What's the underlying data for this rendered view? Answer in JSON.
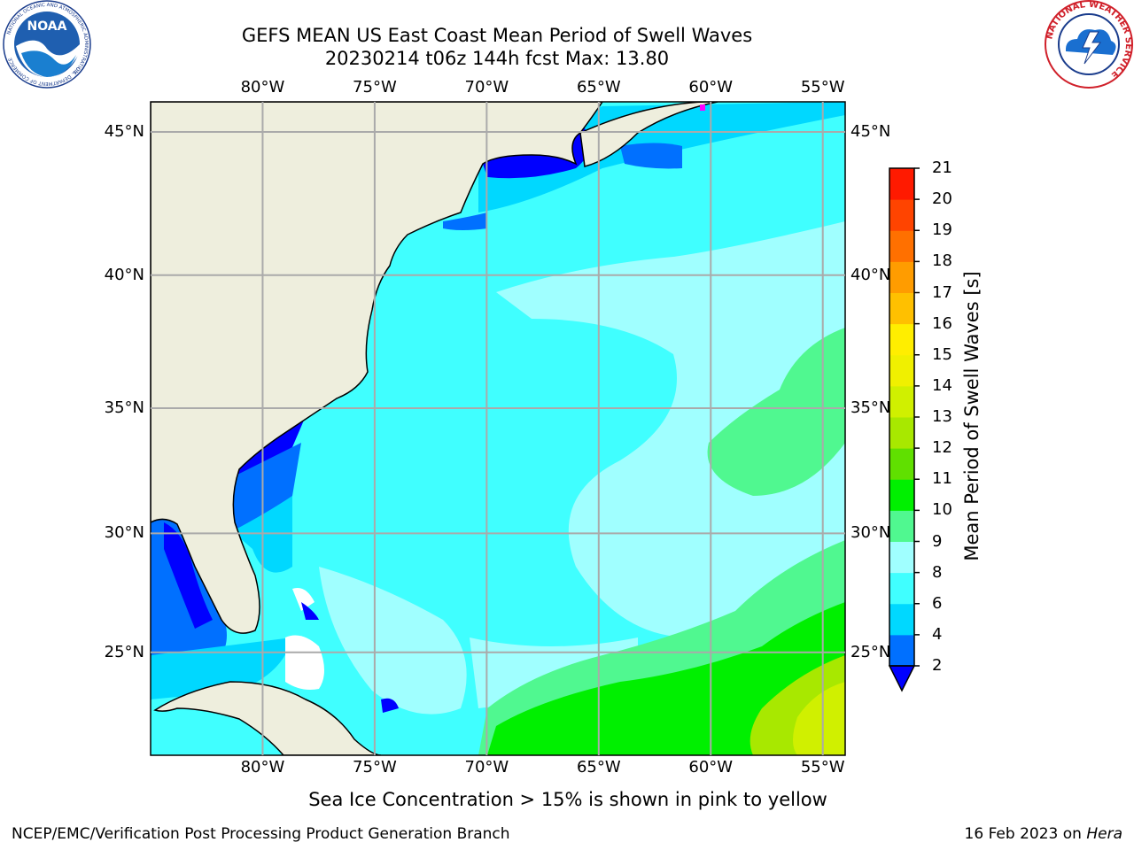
{
  "header": {
    "title_line1": "GEFS MEAN US East Coast Mean Period of Swell Waves",
    "title_line2": "20230214 t06z 144h fcst   Max: 13.80"
  },
  "logos": {
    "left": "noaa-logo",
    "left_text": "NOAA",
    "left_ring_text": "NATIONAL OCEANIC AND ATMOSPHERIC ADMINISTRATION",
    "left_ring_bottom": "U.S. DEPARTMENT OF COMMERCE",
    "right": "nws-logo",
    "right_ring_text": "NATIONAL WEATHER SERVICE"
  },
  "map": {
    "lon_range": [
      -85,
      -54
    ],
    "lat_range": [
      20.5,
      46
    ],
    "lon_ticks": [
      "80°W",
      "75°W",
      "70°W",
      "65°W",
      "60°W",
      "55°W"
    ],
    "lon_values": [
      -80,
      -75,
      -70,
      -65,
      -60,
      -55
    ],
    "lat_ticks": [
      "45°N",
      "40°N",
      "35°N",
      "30°N",
      "25°N"
    ],
    "lat_values": [
      45,
      40,
      35,
      30,
      25
    ],
    "land_color": "#eeeedd",
    "grid": true
  },
  "colorbar": {
    "title": "Mean Period of Swell Waves [s]",
    "labels": [
      "2",
      "4",
      "6",
      "8",
      "9",
      "10",
      "11",
      "12",
      "13",
      "14",
      "15",
      "16",
      "17",
      "18",
      "19",
      "20",
      "21"
    ],
    "colors": [
      "#0070ff",
      "#00d8ff",
      "#40ffff",
      "#a0ffff",
      "#50f890",
      "#00f000",
      "#60e000",
      "#a8e800",
      "#d0f000",
      "#f0f000",
      "#ffee00",
      "#ffc000",
      "#ff9c00",
      "#ff7000",
      "#ff4400",
      "#ff1a00"
    ],
    "under_color": "#0000ff"
  },
  "footer": {
    "note": "Sea Ice Concentration > 15% is shown in pink to yellow",
    "credit": "NCEP/EMC/Verification Post Processing Product Generation Branch",
    "date": "16 Feb 2023 on ",
    "host": "Hera"
  }
}
